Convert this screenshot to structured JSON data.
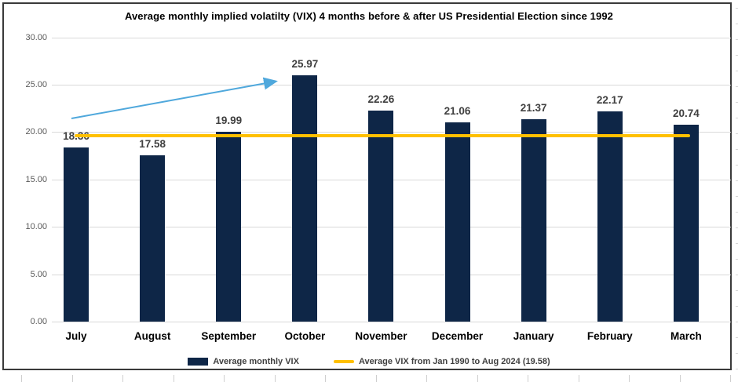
{
  "chart_data": {
    "type": "bar",
    "title": "Average monthly implied volatilty (VIX) 4 months before & after US Presidential Election since 1992",
    "categories": [
      "July",
      "August",
      "September",
      "October",
      "November",
      "December",
      "January",
      "February",
      "March"
    ],
    "series": [
      {
        "name": "Average monthly VIX",
        "values": [
          18.36,
          17.58,
          19.99,
          25.97,
          22.26,
          21.06,
          21.37,
          22.17,
          20.74
        ]
      }
    ],
    "value_labels": [
      "18.36",
      "17.58",
      "19.99",
      "25.97",
      "22.26",
      "21.06",
      "21.37",
      "22.17",
      "20.74"
    ],
    "reference_line": {
      "value": 19.58,
      "label": "Average VIX from Jan 1990 to Aug 2024 (19.58)"
    },
    "annotation_arrow": {
      "from_category": "July",
      "to_category": "October"
    },
    "y_ticks": [
      "0.00",
      "5.00",
      "10.00",
      "15.00",
      "20.00",
      "25.00",
      "30.00"
    ],
    "ylim": [
      0,
      30
    ],
    "y_tick_step": 5,
    "grid": true,
    "legend_position": "bottom",
    "colors": {
      "bar": "#0e2647",
      "reference_line": "#ffc000",
      "arrow": "#4fa8dc",
      "gridline": "#d9d9d9",
      "tick_text": "#595959",
      "value_text": "#404040"
    }
  },
  "legend": {
    "items": [
      {
        "label": "Average monthly VIX",
        "swatch": "bar"
      },
      {
        "label": "Average VIX from Jan 1990 to Aug 2024 (19.58)",
        "swatch": "line"
      }
    ]
  }
}
